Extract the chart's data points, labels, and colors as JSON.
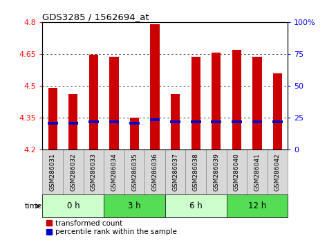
{
  "title": "GDS3285 / 1562694_at",
  "samples": [
    "GSM286031",
    "GSM286032",
    "GSM286033",
    "GSM286034",
    "GSM286035",
    "GSM286036",
    "GSM286037",
    "GSM286038",
    "GSM286039",
    "GSM286040",
    "GSM286041",
    "GSM286042"
  ],
  "bar_bottoms": [
    4.2,
    4.2,
    4.2,
    4.2,
    4.2,
    4.2,
    4.2,
    4.2,
    4.2,
    4.2,
    4.2,
    4.2
  ],
  "bar_tops": [
    4.49,
    4.46,
    4.645,
    4.635,
    4.35,
    4.79,
    4.46,
    4.635,
    4.655,
    4.67,
    4.635,
    4.56
  ],
  "percentile_values": [
    4.325,
    4.325,
    4.33,
    4.33,
    4.325,
    4.34,
    4.33,
    4.33,
    4.33,
    4.33,
    4.33,
    4.33
  ],
  "ylim": [
    4.2,
    4.8
  ],
  "yticks_left": [
    4.2,
    4.35,
    4.5,
    4.65,
    4.8
  ],
  "yticks_right_labels": [
    "0",
    "25",
    "50",
    "75",
    "100%"
  ],
  "yticks_right_vals": [
    4.2,
    4.35,
    4.5,
    4.65,
    4.8
  ],
  "bar_color": "#cc0000",
  "percentile_color": "#0000cc",
  "grid_color": "#000000",
  "time_groups": [
    {
      "label": "0 h",
      "start": 0,
      "end": 3,
      "color": "#ccffcc"
    },
    {
      "label": "3 h",
      "start": 3,
      "end": 6,
      "color": "#55dd55"
    },
    {
      "label": "6 h",
      "start": 6,
      "end": 9,
      "color": "#ccffcc"
    },
    {
      "label": "12 h",
      "start": 9,
      "end": 12,
      "color": "#55dd55"
    }
  ],
  "legend_red_label": "transformed count",
  "legend_blue_label": "percentile rank within the sample",
  "time_label": "time",
  "xlim_left": -0.5,
  "xlim_right": 11.5,
  "background_color": "#ffffff",
  "label_bg_color": "#d8d8d8",
  "label_fontsize": 6.5,
  "bar_width": 0.45
}
